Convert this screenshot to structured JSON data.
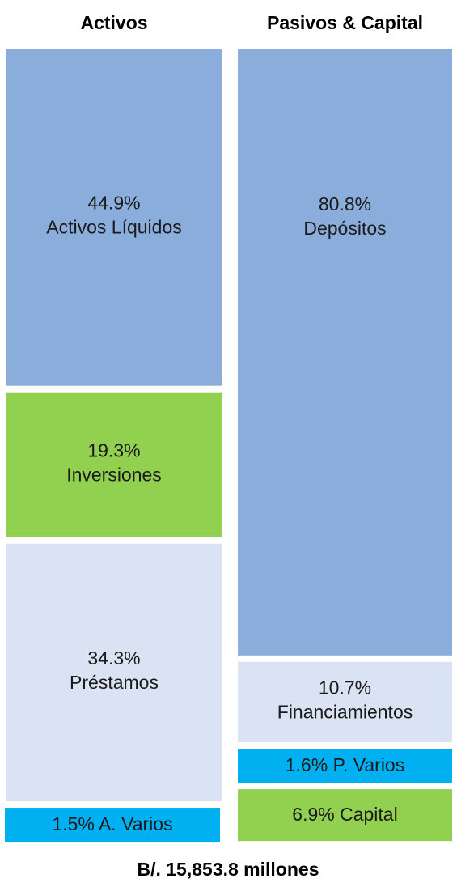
{
  "chart_data": {
    "type": "stacked-column",
    "note": "B/. 15,853.8 millones",
    "stacks": [
      {
        "name": "Activos",
        "segments": [
          {
            "name": "Activos Líquidos",
            "value": 44.9,
            "value_label": "44.9%",
            "color": "#8aaddc"
          },
          {
            "name": "Inversiones",
            "value": 19.3,
            "value_label": "19.3%",
            "color": "#92d050"
          },
          {
            "name": "Préstamos",
            "value": 34.3,
            "value_label": "34.3%",
            "color": "#dae3f3"
          },
          {
            "name": "A. Varios",
            "value": 1.5,
            "value_label": "1.5%",
            "color": "#00b0f0"
          }
        ]
      },
      {
        "name": "Pasivos & Capital",
        "segments": [
          {
            "name": "Depósitos",
            "value": 80.8,
            "value_label": "80.8%",
            "color": "#8aaddc"
          },
          {
            "name": "Financiamientos",
            "value": 10.7,
            "value_label": "10.7%",
            "color": "#dae3f3"
          },
          {
            "name": "P. Varios",
            "value": 1.6,
            "value_label": "1.6%",
            "color": "#00b0f0"
          },
          {
            "name": "Capital",
            "value": 6.9,
            "value_label": "6.9%",
            "color": "#92d050"
          }
        ]
      }
    ]
  }
}
